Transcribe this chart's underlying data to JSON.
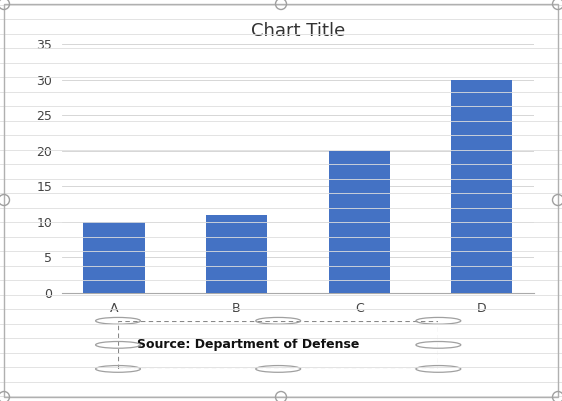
{
  "categories": [
    "A",
    "B",
    "C",
    "D"
  ],
  "values": [
    10,
    11,
    20,
    30
  ],
  "bar_color": "#4472C4",
  "title": "Chart Title",
  "title_fontsize": 13,
  "ylim": [
    0,
    35
  ],
  "yticks": [
    0,
    5,
    10,
    15,
    20,
    25,
    30,
    35
  ],
  "source_text": "Source: Department of Defense",
  "source_fontsize": 9,
  "plot_bg_color": "#FFFFFF",
  "grid_color": "#D0D0D0",
  "tick_fontsize": 9,
  "bar_width": 0.5,
  "outer_bg_color": "#FFFFFF",
  "handle_color": "#A0A0A0",
  "border_color": "#B0B0B0",
  "hline_color": "#DEDEDE"
}
